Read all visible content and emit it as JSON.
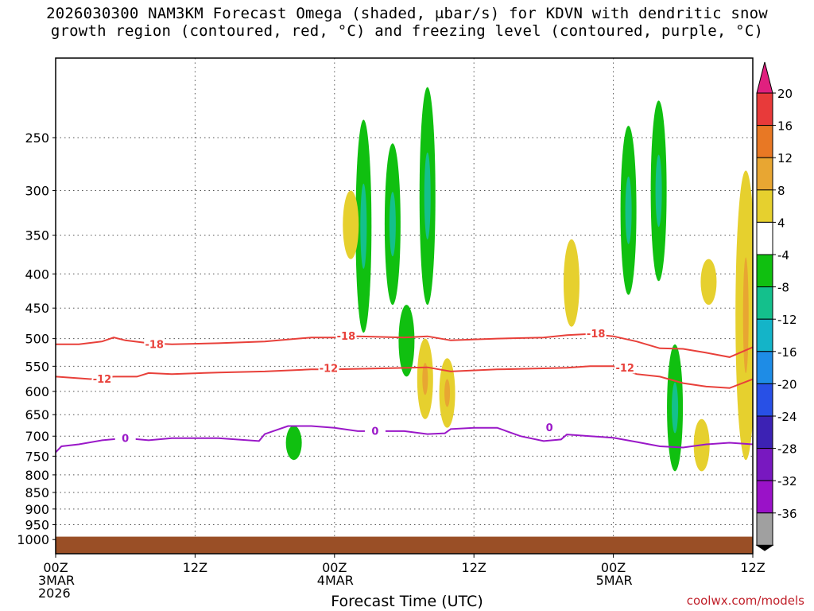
{
  "title_line1": "2026030300 NAM3KM Forecast Omega (shaded, μbar/s) for KDVN with dendritic snow",
  "title_line2": "growth region (contoured, red, °C) and freezing level (contoured, purple, °C)",
  "xlabel": "Forecast Time (UTC)",
  "credit": "coolwx.com/models",
  "colors": {
    "dendritic": "#e8403a",
    "freezing": "#9a18c8",
    "ground": "#9a4f26",
    "grid": "#555555"
  },
  "chart_data": {
    "type": "heatmap",
    "x_unit": "forecast hours from 2026-03-03 00Z",
    "x_range": [
      0,
      60
    ],
    "y_unit": "hPa",
    "y_range": [
      1050,
      190
    ],
    "y_scale": "log",
    "y_ticks": [
      250,
      300,
      350,
      400,
      450,
      500,
      550,
      600,
      650,
      700,
      750,
      800,
      850,
      900,
      950,
      1000
    ],
    "x_ticks": [
      {
        "hour": 0,
        "label": [
          "00Z",
          "3MAR",
          "2026"
        ]
      },
      {
        "hour": 12,
        "label": [
          "12Z"
        ]
      },
      {
        "hour": 24,
        "label": [
          "00Z",
          "4MAR"
        ]
      },
      {
        "hour": 36,
        "label": [
          "12Z"
        ]
      },
      {
        "hour": 48,
        "label": [
          "00Z",
          "5MAR"
        ]
      },
      {
        "hour": 60,
        "label": [
          "12Z"
        ]
      }
    ],
    "grid": true,
    "colorbar": {
      "position": "right",
      "labels": [
        "20",
        "16",
        "12",
        "8",
        "4",
        "-4",
        "-8",
        "-12",
        "-16",
        "-20",
        "-24",
        "-28",
        "-32",
        "-36"
      ],
      "colors": [
        "#e0207f",
        "#e83a3a",
        "#e87824",
        "#e8a632",
        "#e6d02e",
        "#ffffff",
        "#10c010",
        "#14c08c",
        "#14b4c8",
        "#1e8ce6",
        "#2850e6",
        "#3c22b4",
        "#7818c0",
        "#9a12c8",
        "#a0a0a0",
        "#000000"
      ]
    },
    "contours": [
      {
        "label": "-18",
        "color": "#e8403a",
        "x": [
          0,
          2,
          4,
          5,
          6,
          8,
          10,
          14,
          18,
          22,
          24,
          26,
          30,
          32,
          34,
          38,
          42,
          44,
          46,
          48,
          50,
          52,
          54,
          56,
          58,
          60
        ],
        "y": [
          510,
          510,
          505,
          498,
          503,
          508,
          510,
          508,
          505,
          498,
          498,
          496,
          498,
          496,
          503,
          500,
          498,
          494,
          492,
          496,
          505,
          517,
          518,
          525,
          533,
          515
        ],
        "label_at": [
          [
            8.5,
            510
          ],
          [
            25,
            496
          ],
          [
            46.5,
            492
          ]
        ]
      },
      {
        "label": "-12",
        "color": "#e8403a",
        "x": [
          0,
          3,
          5,
          7,
          8,
          10,
          14,
          18,
          22,
          24,
          28,
          32,
          34,
          38,
          42,
          44,
          46,
          48,
          50,
          52,
          54,
          56,
          58,
          60
        ],
        "y": [
          570,
          575,
          570,
          570,
          563,
          565,
          562,
          560,
          556,
          556,
          554,
          552,
          560,
          556,
          554,
          553,
          550,
          550,
          565,
          570,
          583,
          590,
          593,
          575
        ],
        "label_at": [
          [
            4,
            575
          ],
          [
            23.5,
            554
          ],
          [
            49,
            553
          ]
        ]
      },
      {
        "label": "0",
        "color": "#9a18c8",
        "x": [
          0,
          0.5,
          2,
          4,
          6,
          8,
          10,
          14,
          17.5,
          18,
          20,
          22,
          24,
          26,
          30,
          32,
          33.5,
          34,
          36,
          38,
          40,
          42,
          43.5,
          44,
          46,
          48,
          50,
          52,
          54,
          56,
          58,
          60
        ],
        "y": [
          740,
          725,
          720,
          710,
          705,
          710,
          705,
          705,
          712,
          695,
          676,
          676,
          680,
          688,
          688,
          695,
          693,
          683,
          680,
          680,
          700,
          712,
          708,
          696,
          700,
          704,
          714,
          725,
          728,
          720,
          716,
          720
        ],
        "label_at": [
          [
            6,
            705
          ],
          [
            27.5,
            688
          ],
          [
            42.5,
            680
          ]
        ]
      }
    ],
    "shaded_regions": [
      {
        "value_class": "-8",
        "x": 26.5,
        "p_top": 235,
        "p_bot": 490
      },
      {
        "value_class": "-8",
        "x": 29,
        "p_top": 255,
        "p_bot": 445
      },
      {
        "value_class": "-8",
        "x": 32,
        "p_top": 210,
        "p_bot": 445
      },
      {
        "value_class": "-8",
        "x": 30.2,
        "p_top": 445,
        "p_bot": 570
      },
      {
        "value_class": "-8",
        "x": 49.3,
        "p_top": 240,
        "p_bot": 430
      },
      {
        "value_class": "-8",
        "x": 51.9,
        "p_top": 220,
        "p_bot": 410
      },
      {
        "value_class": "-8",
        "x": 53.3,
        "p_top": 510,
        "p_bot": 790
      },
      {
        "value_class": "-8",
        "x": 20.5,
        "p_top": 675,
        "p_bot": 760
      },
      {
        "value_class": "4",
        "x": 25.4,
        "p_top": 300,
        "p_bot": 380
      },
      {
        "value_class": "4",
        "x": 31.8,
        "p_top": 500,
        "p_bot": 660
      },
      {
        "value_class": "4",
        "x": 33.7,
        "p_top": 535,
        "p_bot": 680
      },
      {
        "value_class": "4",
        "x": 44.4,
        "p_top": 355,
        "p_bot": 480
      },
      {
        "value_class": "4",
        "x": 59.4,
        "p_top": 280,
        "p_bot": 760
      },
      {
        "value_class": "4",
        "x": 56.2,
        "p_top": 380,
        "p_bot": 445
      },
      {
        "value_class": "4",
        "x": 55.6,
        "p_top": 660,
        "p_bot": 790
      }
    ],
    "ground_pressure": 990
  }
}
